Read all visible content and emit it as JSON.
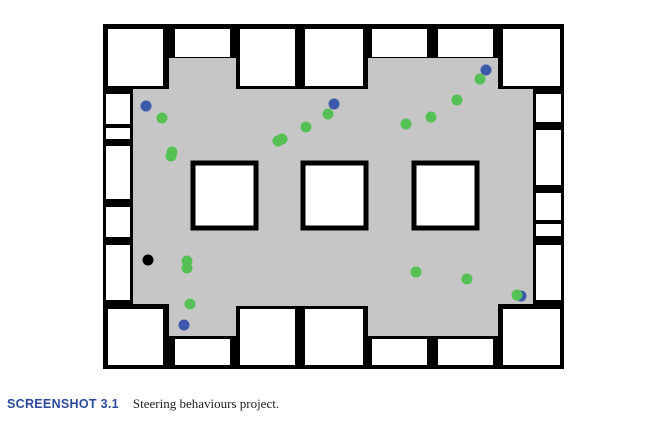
{
  "colors": {
    "floor": "#c6c6c6",
    "wall": "#000000",
    "box": "#ffffff",
    "agent_green": "#55c155",
    "agent_blue": "#3d59ab",
    "agent_black": "#000000",
    "caption_label": "#2b4a9a",
    "caption_text": "#222222"
  },
  "agents": {
    "green_count": 18,
    "blue_count": 5,
    "black_count": 1
  },
  "caption": {
    "label": "SCREENSHOT 3.1",
    "text": "Steering behaviours project."
  }
}
